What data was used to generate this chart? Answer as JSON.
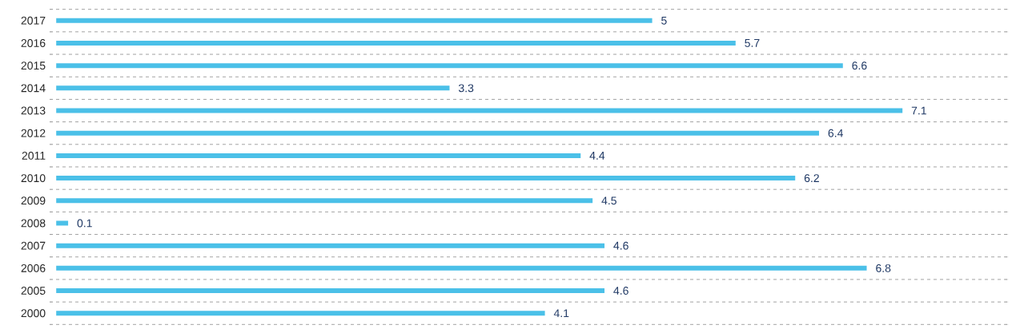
{
  "chart_data": {
    "type": "bar",
    "orientation": "horizontal",
    "categories": [
      "2017",
      "2016",
      "2015",
      "2014",
      "2013",
      "2012",
      "2011",
      "2010",
      "2009",
      "2008",
      "2007",
      "2006",
      "2005",
      "2000"
    ],
    "values": [
      5,
      5.7,
      6.6,
      3.3,
      7.1,
      6.4,
      4.4,
      6.2,
      4.5,
      0.1,
      4.6,
      6.8,
      4.6,
      4.1
    ],
    "color": "#4bc0e8",
    "data_labels": true,
    "grid": "y"
  }
}
